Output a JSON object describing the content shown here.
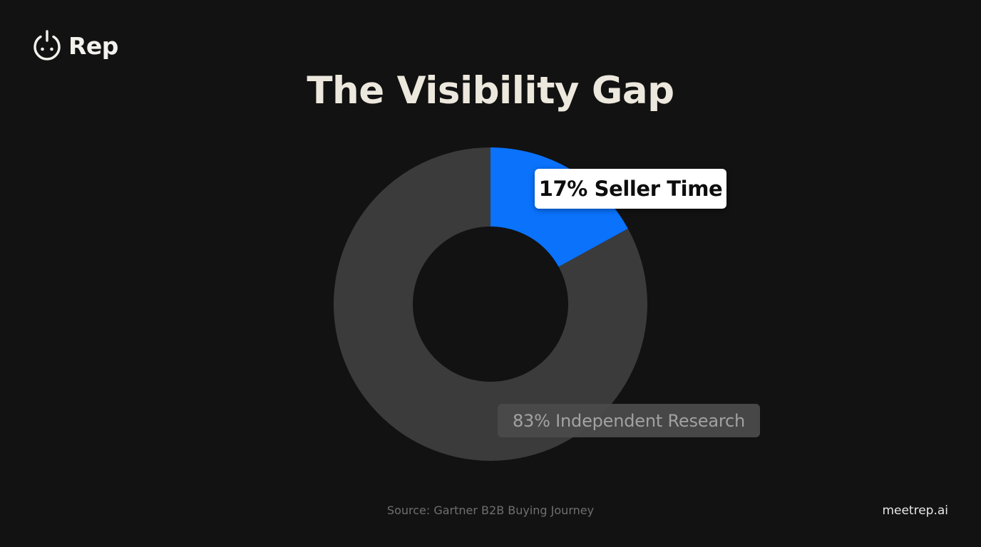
{
  "brand": {
    "logo_icon": "power-face-icon",
    "name": "Rep",
    "website": "meetrep.ai"
  },
  "slide": {
    "title": "The Visibility Gap",
    "source": "Source: Gartner B2B Buying Journey"
  },
  "colors": {
    "background": "#121212",
    "accent": "#0a72fb",
    "secondary_slice": "#3b3b3b",
    "title": "#ede8dd"
  },
  "chart_data": {
    "type": "pie",
    "subtype": "donut",
    "title": "The Visibility Gap",
    "categories": [
      "Seller Time",
      "Independent Research"
    ],
    "values": [
      17,
      83
    ],
    "unit": "%",
    "colors": [
      "#0a72fb",
      "#3b3b3b"
    ],
    "labels": [
      "17% Seller Time",
      "83% Independent Research"
    ],
    "start_angle": "12 o'clock, clockwise",
    "legend": "none (inline labels)",
    "source": "Source: Gartner B2B Buying Journey"
  }
}
